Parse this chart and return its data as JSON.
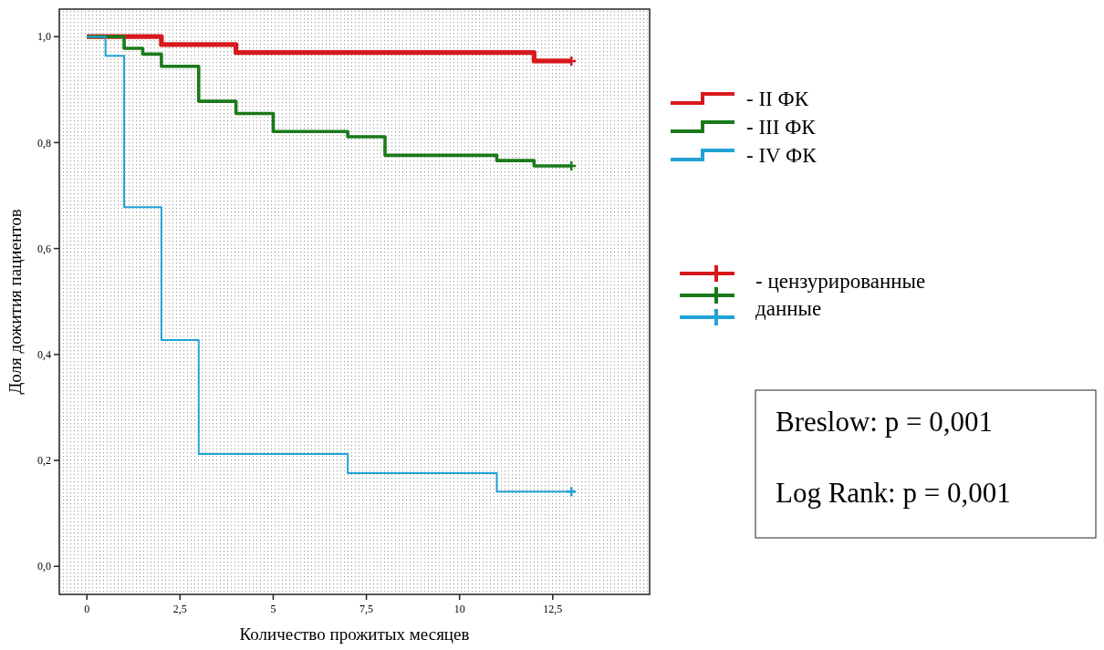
{
  "chart_data": {
    "type": "step",
    "xlabel": "Количество прожитых месяцев",
    "ylabel": "Доля дожития пациентов",
    "xlim": [
      -0.74,
      15.1
    ],
    "ylim": [
      -0.053,
      1.052
    ],
    "xticks": [
      0,
      {
        "value": 2.5,
        "label": "2,5"
      },
      5,
      {
        "value": 7.5,
        "label": "7,5"
      },
      10,
      {
        "value": 12.5,
        "label": "12,5"
      }
    ],
    "yticks": [
      {
        "value": 0,
        "label": "0,0"
      },
      {
        "value": 0.2,
        "label": "0,2"
      },
      {
        "value": 0.4,
        "label": "0,4"
      },
      {
        "value": 0.6,
        "label": "0,6"
      },
      {
        "value": 0.8,
        "label": "0,8"
      },
      {
        "value": 1,
        "label": "1,0"
      }
    ],
    "grid": false,
    "legend": "right",
    "series": [
      {
        "name": "- II ФК",
        "color": "#d7191c",
        "x": [
          0,
          2,
          4,
          12,
          13
        ],
        "values": [
          1,
          0.985,
          0.97,
          0.954,
          0.954
        ]
      },
      {
        "name": "- III ФК",
        "color": "#1a7a1a",
        "x": [
          0,
          1,
          1.5,
          2,
          3,
          4,
          5,
          7,
          8,
          11,
          12,
          13
        ],
        "values": [
          1,
          0.978,
          0.967,
          0.944,
          0.878,
          0.855,
          0.821,
          0.811,
          0.776,
          0.766,
          0.756,
          0.756
        ]
      },
      {
        "name": "- IV ФК",
        "color": "#1fa3d6",
        "x": [
          0,
          0.5,
          1,
          2,
          3,
          7,
          11,
          13
        ],
        "values": [
          1,
          0.964,
          0.678,
          0.427,
          0.212,
          0.176,
          0.141,
          0.141
        ]
      },
      {
        "type": "scatter",
        "marker": "cross",
        "color": "#d7191c",
        "x": [
          13
        ],
        "values": [
          0.954
        ]
      },
      {
        "type": "scatter",
        "marker": "cross",
        "color": "#1a7a1a",
        "x": [
          13
        ],
        "values": [
          0.756
        ]
      },
      {
        "type": "scatter",
        "marker": "cross",
        "color": "#1fa3d6",
        "x": [
          13
        ],
        "values": [
          0.141
        ]
      }
    ],
    "annotations": [
      "- цензурированные данные",
      "Breslow: p = 0,001",
      "Log Rank: p = 0,001"
    ]
  }
}
